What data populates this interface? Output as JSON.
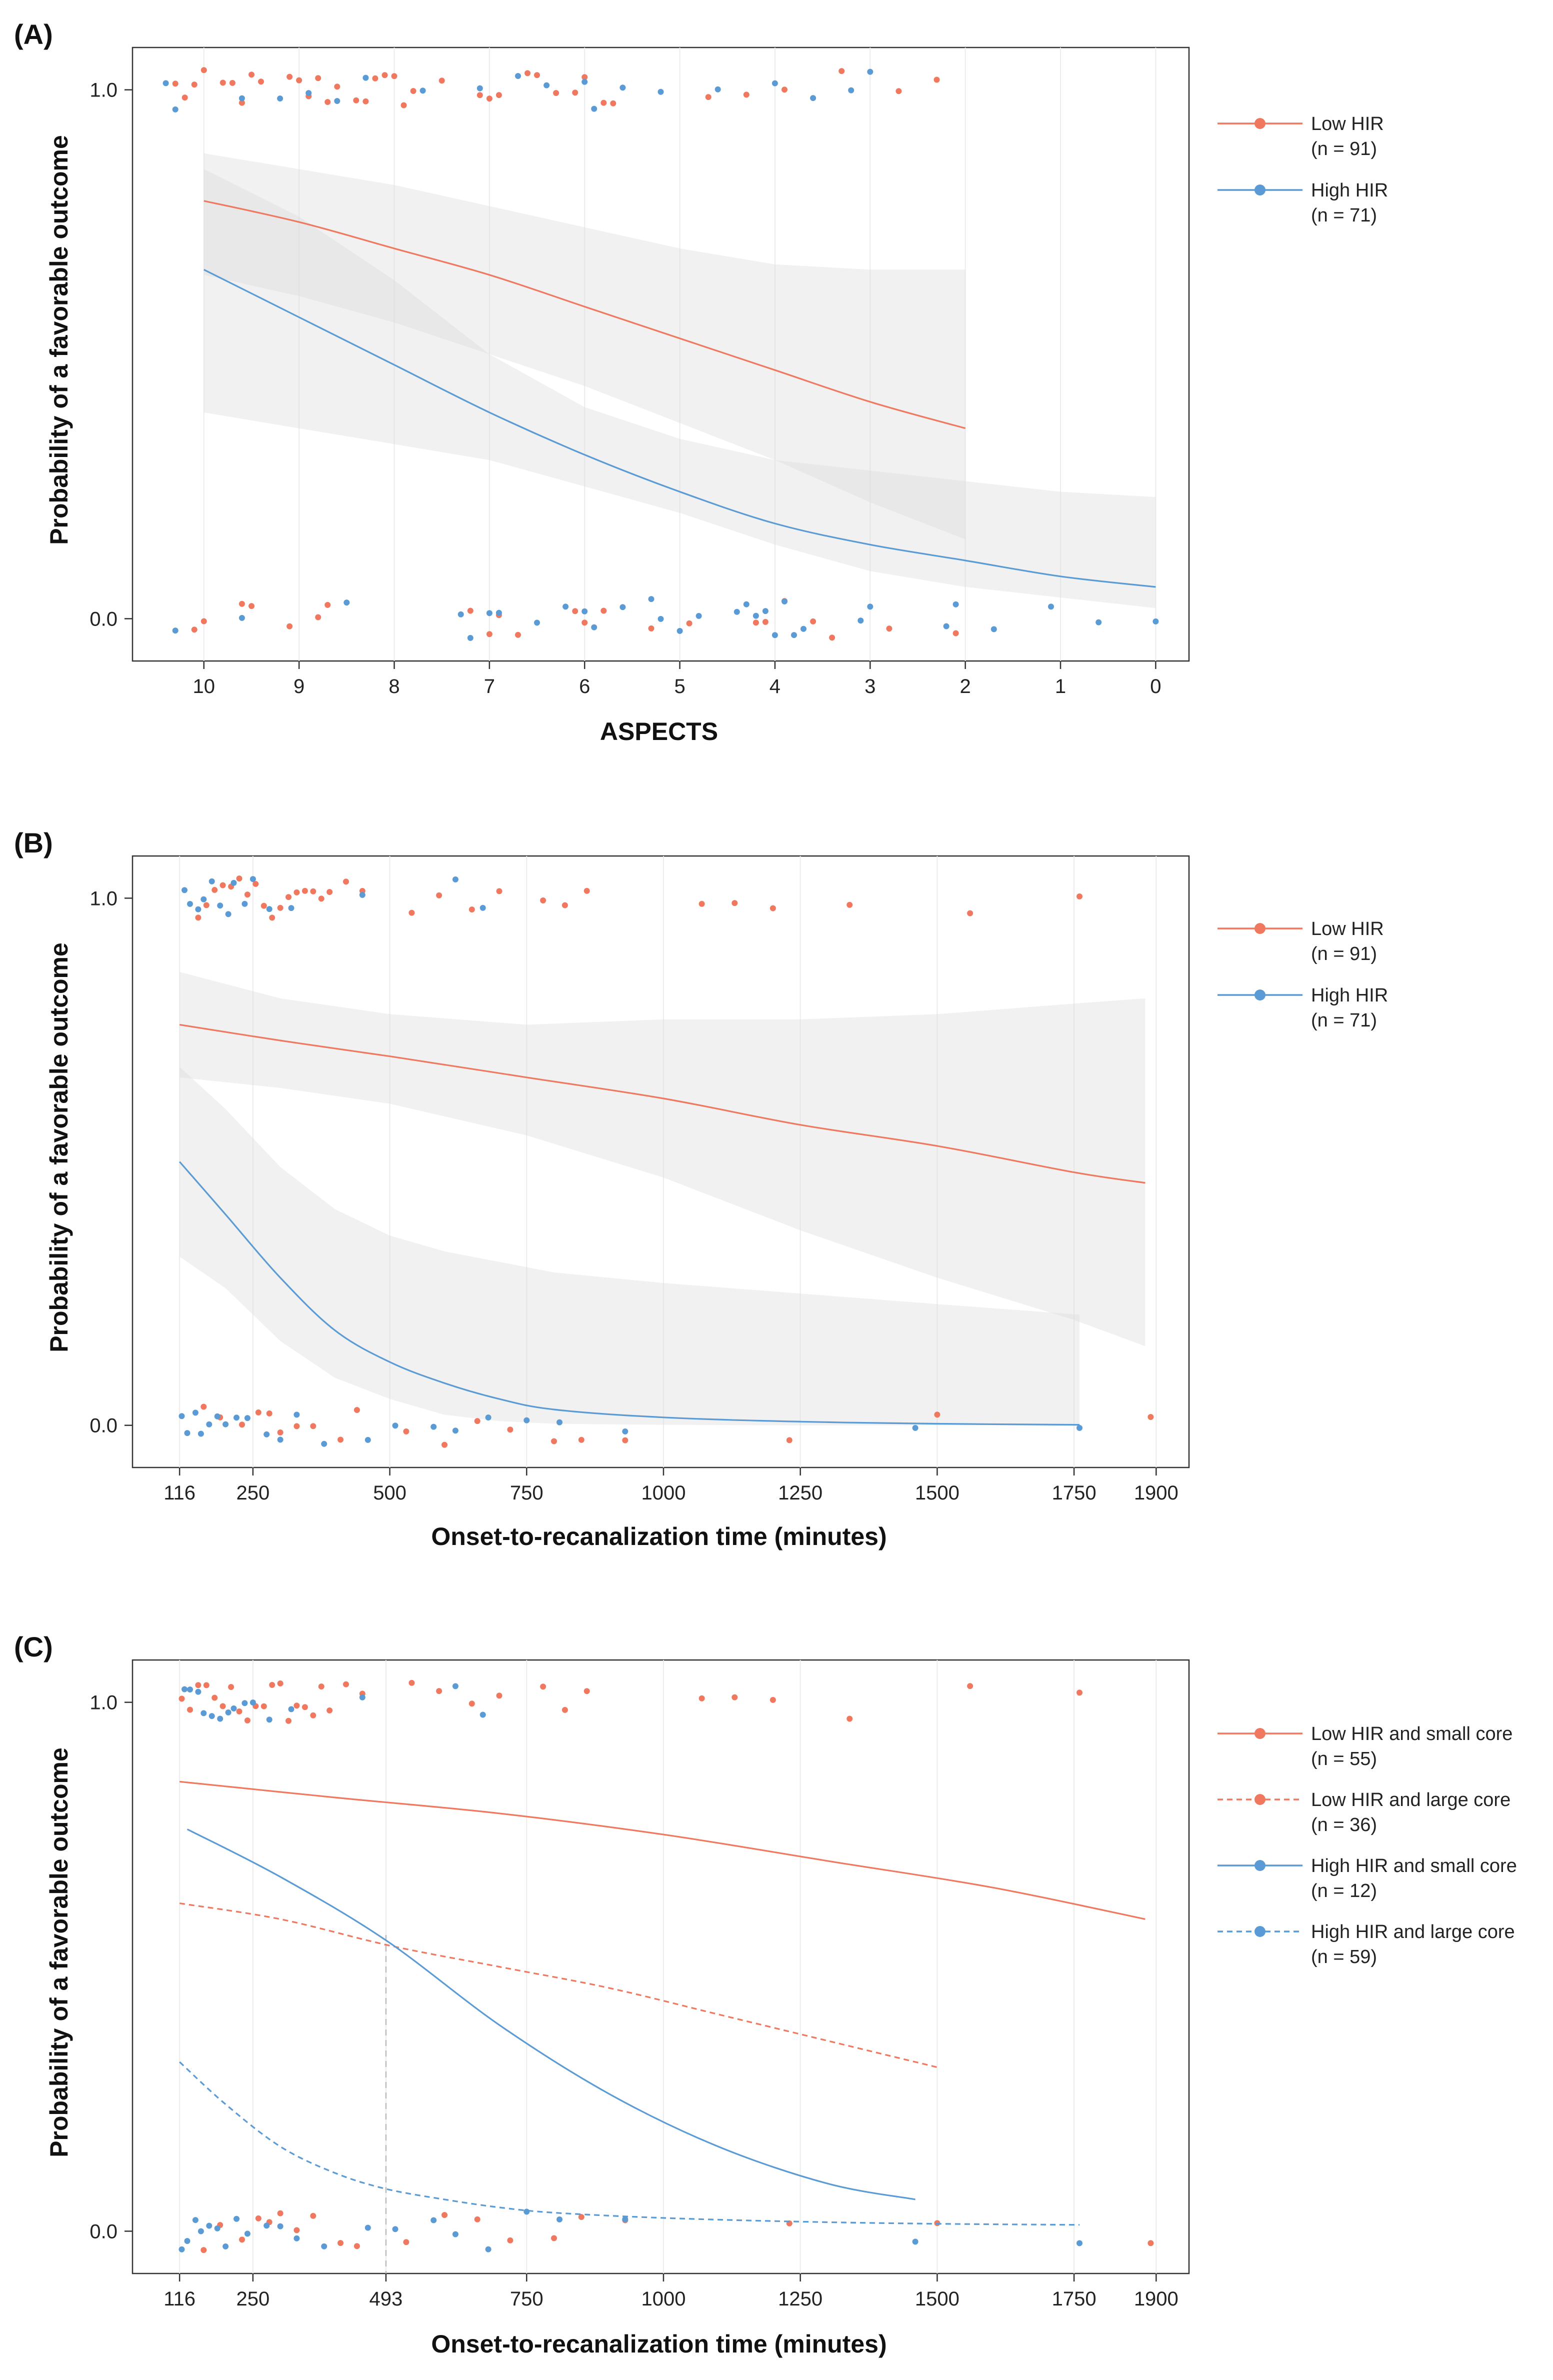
{
  "chart_data": [
    {
      "type": "line",
      "panel_label": "(A)",
      "xlabel": "ASPECTS",
      "ylabel": "Probability of a favorable outcome",
      "x_reversed": true,
      "xlim": [
        -0.35,
        10.75
      ],
      "ylim": [
        -0.08,
        1.08
      ],
      "x_ticks": [
        {
          "value": 10,
          "label": "10"
        },
        {
          "value": 9,
          "label": "9"
        },
        {
          "value": 8,
          "label": "8"
        },
        {
          "value": 7,
          "label": "7"
        },
        {
          "value": 6,
          "label": "6"
        },
        {
          "value": 5,
          "label": "5"
        },
        {
          "value": 4,
          "label": "4"
        },
        {
          "value": 3,
          "label": "3"
        },
        {
          "value": 2,
          "label": "2"
        },
        {
          "value": 1,
          "label": "1"
        },
        {
          "value": 0,
          "label": "0"
        }
      ],
      "y_ticks": [
        {
          "value": 0,
          "label": "0.0"
        },
        {
          "value": 1,
          "label": "1.0"
        }
      ],
      "legend_position": "right",
      "series": [
        {
          "name": "Low HIR",
          "n_label": "(n = 91)",
          "color": "#f0785f",
          "dash": "solid",
          "x": [
            10,
            9,
            8,
            7,
            6,
            5,
            4,
            3,
            2
          ],
          "y": [
            0.79,
            0.75,
            0.7,
            0.65,
            0.59,
            0.53,
            0.47,
            0.41,
            0.36
          ],
          "ci_lower": [
            0.65,
            0.61,
            0.56,
            0.5,
            0.44,
            0.37,
            0.3,
            0.22,
            0.15
          ],
          "ci_upper": [
            0.88,
            0.85,
            0.82,
            0.78,
            0.74,
            0.7,
            0.67,
            0.66,
            0.66
          ]
        },
        {
          "name": "High HIR",
          "n_label": "(n = 71)",
          "color": "#5b9bd5",
          "dash": "solid",
          "x": [
            10,
            9,
            8,
            7,
            6,
            5,
            4,
            3,
            2,
            1,
            0
          ],
          "y": [
            0.66,
            0.57,
            0.48,
            0.39,
            0.31,
            0.24,
            0.18,
            0.14,
            0.11,
            0.08,
            0.06
          ],
          "ci_lower": [
            0.39,
            0.36,
            0.33,
            0.3,
            0.25,
            0.2,
            0.14,
            0.09,
            0.06,
            0.04,
            0.02
          ],
          "ci_upper": [
            0.85,
            0.76,
            0.64,
            0.5,
            0.4,
            0.34,
            0.3,
            0.28,
            0.26,
            0.24,
            0.23
          ]
        }
      ],
      "points": {
        "low": {
          "top": [
            10.3,
            10.2,
            10.1,
            10.0,
            9.8,
            9.7,
            9.6,
            9.5,
            9.4,
            9.1,
            9.0,
            8.9,
            8.8,
            8.7,
            8.6,
            8.4,
            8.3,
            8.2,
            8.1,
            8.0,
            7.9,
            7.8,
            7.5,
            7.1,
            7.0,
            6.9,
            6.6,
            6.5,
            6.3,
            6.1,
            6.0,
            5.8,
            5.7,
            4.7,
            4.3,
            3.9,
            3.3,
            2.7,
            2.3
          ],
          "bottom": [
            10.1,
            10.0,
            9.6,
            9.5,
            9.1,
            8.8,
            8.7,
            7.2,
            7.0,
            6.9,
            6.7,
            6.1,
            6.0,
            5.8,
            5.3,
            4.9,
            4.2,
            4.1,
            3.9,
            3.6,
            3.4,
            2.8,
            2.1
          ]
        },
        "high": {
          "top": [
            10.4,
            10.3,
            9.6,
            9.2,
            8.9,
            8.6,
            8.3,
            7.7,
            7.1,
            6.7,
            6.4,
            6.0,
            5.9,
            5.6,
            5.2,
            4.6,
            4.0,
            3.6,
            3.2,
            3.0
          ],
          "bottom": [
            10.3,
            9.6,
            8.5,
            7.3,
            7.2,
            7.0,
            6.9,
            6.5,
            6.2,
            6.0,
            5.9,
            5.6,
            5.3,
            5.2,
            5.0,
            4.8,
            4.4,
            4.3,
            4.2,
            4.1,
            4.0,
            3.9,
            3.8,
            3.7,
            3.1,
            3.0,
            2.2,
            2.1,
            1.7,
            1.1,
            0.6,
            0.0
          ]
        }
      }
    },
    {
      "type": "line",
      "panel_label": "(B)",
      "xlabel": "Onset-to-recanalization time (minutes)",
      "ylabel": "Probability of a favorable outcome",
      "x_reversed": false,
      "xlim": [
        30,
        1960
      ],
      "ylim": [
        -0.08,
        1.08
      ],
      "x_ticks": [
        {
          "value": 116,
          "label": "116"
        },
        {
          "value": 250,
          "label": "250"
        },
        {
          "value": 500,
          "label": "500"
        },
        {
          "value": 750,
          "label": "750"
        },
        {
          "value": 1000,
          "label": "1000"
        },
        {
          "value": 1250,
          "label": "1250"
        },
        {
          "value": 1500,
          "label": "1500"
        },
        {
          "value": 1750,
          "label": "1750"
        },
        {
          "value": 1900,
          "label": "1900"
        }
      ],
      "y_ticks": [
        {
          "value": 0,
          "label": "0.0"
        },
        {
          "value": 1,
          "label": "1.0"
        }
      ],
      "legend_position": "right",
      "series": [
        {
          "name": "Low HIR",
          "n_label": "(n = 91)",
          "color": "#f0785f",
          "dash": "solid",
          "x": [
            116,
            300,
            500,
            750,
            1000,
            1250,
            1500,
            1750,
            1880
          ],
          "y": [
            0.76,
            0.73,
            0.7,
            0.66,
            0.62,
            0.57,
            0.53,
            0.48,
            0.46
          ],
          "ci_lower": [
            0.66,
            0.64,
            0.61,
            0.55,
            0.47,
            0.37,
            0.28,
            0.2,
            0.15
          ],
          "ci_upper": [
            0.86,
            0.81,
            0.78,
            0.76,
            0.77,
            0.77,
            0.78,
            0.8,
            0.81
          ]
        },
        {
          "name": "High HIR",
          "n_label": "(n = 71)",
          "color": "#5b9bd5",
          "dash": "solid",
          "x": [
            116,
            200,
            300,
            400,
            500,
            600,
            700,
            800,
            1000,
            1250,
            1500,
            1760
          ],
          "y": [
            0.5,
            0.4,
            0.28,
            0.18,
            0.12,
            0.08,
            0.05,
            0.03,
            0.015,
            0.007,
            0.003,
            0.001
          ],
          "ci_lower": [
            0.32,
            0.26,
            0.16,
            0.09,
            0.05,
            0.02,
            0.008,
            0.003,
            0.001,
            0.0,
            0.0,
            0.0
          ],
          "ci_upper": [
            0.68,
            0.6,
            0.49,
            0.41,
            0.36,
            0.33,
            0.31,
            0.29,
            0.27,
            0.25,
            0.23,
            0.21
          ]
        }
      ],
      "points": {
        "low": {
          "top": [
            150,
            165,
            180,
            195,
            210,
            225,
            240,
            255,
            270,
            285,
            300,
            315,
            330,
            345,
            360,
            375,
            390,
            420,
            450,
            540,
            590,
            650,
            700,
            780,
            820,
            860,
            1070,
            1130,
            1200,
            1340,
            1560,
            1760
          ],
          "bottom": [
            160,
            190,
            230,
            260,
            280,
            300,
            330,
            360,
            410,
            440,
            530,
            600,
            660,
            720,
            800,
            850,
            930,
            1230,
            1500,
            1890
          ]
        },
        "high": {
          "top": [
            125,
            135,
            150,
            160,
            175,
            190,
            205,
            215,
            235,
            250,
            280,
            320,
            450,
            620,
            670
          ],
          "bottom": [
            120,
            130,
            145,
            155,
            170,
            185,
            200,
            220,
            240,
            275,
            300,
            330,
            380,
            460,
            510,
            580,
            620,
            680,
            750,
            810,
            930,
            1460,
            1760
          ]
        }
      }
    },
    {
      "type": "line",
      "panel_label": "(C)",
      "xlabel": "Onset-to-recanalization time (minutes)",
      "ylabel": "Probability of a favorable outcome",
      "x_reversed": false,
      "xlim": [
        30,
        1960
      ],
      "ylim": [
        -0.08,
        1.08
      ],
      "x_ticks": [
        {
          "value": 116,
          "label": "116"
        },
        {
          "value": 250,
          "label": "250"
        },
        {
          "value": 493,
          "label": "493"
        },
        {
          "value": 750,
          "label": "750"
        },
        {
          "value": 1000,
          "label": "1000"
        },
        {
          "value": 1250,
          "label": "1250"
        },
        {
          "value": 1500,
          "label": "1500"
        },
        {
          "value": 1750,
          "label": "1750"
        },
        {
          "value": 1900,
          "label": "1900"
        }
      ],
      "y_ticks": [
        {
          "value": 0,
          "label": "0.0"
        },
        {
          "value": 1,
          "label": "1.0"
        }
      ],
      "legend_position": "right",
      "reference_line": {
        "x": 493,
        "y_top": 0.56
      },
      "series": [
        {
          "name": "Low HIR and small core",
          "n_label": "(n = 55)",
          "color": "#f0785f",
          "dash": "solid",
          "x": [
            116,
            400,
            700,
            1000,
            1300,
            1600,
            1880
          ],
          "y": [
            0.85,
            0.82,
            0.79,
            0.75,
            0.7,
            0.65,
            0.59
          ],
          "ci_lower": null,
          "ci_upper": null
        },
        {
          "name": "Low HIR and large core",
          "n_label": "(n = 36)",
          "color": "#f0785f",
          "dash": "dashed",
          "x": [
            116,
            300,
            500,
            700,
            900,
            1100,
            1300,
            1500
          ],
          "y": [
            0.62,
            0.59,
            0.54,
            0.5,
            0.46,
            0.41,
            0.36,
            0.31
          ],
          "ci_lower": null,
          "ci_upper": null
        },
        {
          "name": "High HIR and small core",
          "n_label": "(n = 12)",
          "color": "#5b9bd5",
          "dash": "solid",
          "x": [
            130,
            300,
            493,
            700,
            900,
            1100,
            1300,
            1460
          ],
          "y": [
            0.76,
            0.67,
            0.55,
            0.39,
            0.26,
            0.16,
            0.09,
            0.06
          ],
          "ci_lower": null,
          "ci_upper": null
        },
        {
          "name": "High HIR and large core",
          "n_label": "(n = 59)",
          "color": "#5b9bd5",
          "dash": "dashed",
          "x": [
            116,
            200,
            300,
            400,
            493,
            600,
            700,
            800,
            1000,
            1250,
            1500,
            1760
          ],
          "y": [
            0.32,
            0.24,
            0.16,
            0.11,
            0.08,
            0.06,
            0.045,
            0.035,
            0.025,
            0.018,
            0.014,
            0.012
          ],
          "ci_lower": null,
          "ci_upper": null
        }
      ],
      "points": {
        "low": {
          "top": [
            120,
            135,
            150,
            165,
            180,
            195,
            210,
            225,
            240,
            255,
            270,
            285,
            300,
            315,
            330,
            345,
            360,
            375,
            390,
            420,
            450,
            540,
            590,
            650,
            700,
            780,
            820,
            860,
            1070,
            1130,
            1200,
            1340,
            1560,
            1760
          ],
          "bottom": [
            160,
            190,
            230,
            260,
            280,
            300,
            330,
            360,
            410,
            440,
            530,
            600,
            660,
            720,
            800,
            850,
            930,
            1230,
            1500,
            1890
          ]
        },
        "high": {
          "top": [
            125,
            135,
            150,
            160,
            175,
            190,
            205,
            215,
            235,
            250,
            280,
            320,
            450,
            620,
            670
          ],
          "bottom": [
            120,
            130,
            145,
            155,
            170,
            185,
            200,
            220,
            240,
            275,
            300,
            330,
            380,
            460,
            510,
            580,
            620,
            680,
            750,
            810,
            930,
            1460,
            1760
          ]
        }
      }
    }
  ]
}
